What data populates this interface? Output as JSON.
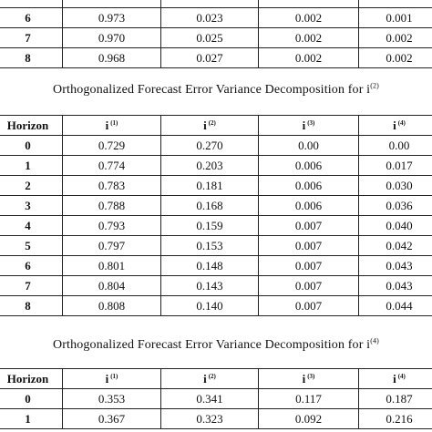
{
  "column_headers": {
    "horizon": "Horizon",
    "base": "i",
    "supers": [
      "(1)",
      "(2)",
      "(3)",
      "(4)"
    ]
  },
  "table1": {
    "rows": [
      {
        "h": "",
        "v": [
          "",
          "",
          "",
          ""
        ]
      },
      {
        "h": "6",
        "v": [
          "0.973",
          "0.023",
          "0.002",
          "0.001"
        ]
      },
      {
        "h": "7",
        "v": [
          "0.970",
          "0.025",
          "0.002",
          "0.002"
        ]
      },
      {
        "h": "8",
        "v": [
          "0.968",
          "0.027",
          "0.002",
          "0.002"
        ]
      }
    ]
  },
  "table2": {
    "caption": "Orthogonalized Forecast Error Variance Decomposition for i",
    "caption_sup": "(2)",
    "rows": [
      {
        "h": "0",
        "v": [
          "0.729",
          "0.270",
          "0.00",
          "0.00"
        ]
      },
      {
        "h": "1",
        "v": [
          "0.774",
          "0.203",
          "0.006",
          "0.017"
        ]
      },
      {
        "h": "2",
        "v": [
          "0.783",
          "0.181",
          "0.006",
          "0.030"
        ]
      },
      {
        "h": "3",
        "v": [
          "0.788",
          "0.168",
          "0.006",
          "0.036"
        ]
      },
      {
        "h": "4",
        "v": [
          "0.793",
          "0.159",
          "0.007",
          "0.040"
        ]
      },
      {
        "h": "5",
        "v": [
          "0.797",
          "0.153",
          "0.007",
          "0.042"
        ]
      },
      {
        "h": "6",
        "v": [
          "0.801",
          "0.148",
          "0.007",
          "0.043"
        ]
      },
      {
        "h": "7",
        "v": [
          "0.804",
          "0.143",
          "0.007",
          "0.043"
        ]
      },
      {
        "h": "8",
        "v": [
          "0.808",
          "0.140",
          "0.007",
          "0.044"
        ]
      }
    ]
  },
  "table3": {
    "caption": "Orthogonalized Forecast Error Variance Decomposition for i",
    "caption_sup": "(4)",
    "rows": [
      {
        "h": "0",
        "v": [
          "0.353",
          "0.341",
          "0.117",
          "0.187"
        ]
      },
      {
        "h": "1",
        "v": [
          "0.367",
          "0.323",
          "0.092",
          "0.216"
        ]
      }
    ]
  }
}
